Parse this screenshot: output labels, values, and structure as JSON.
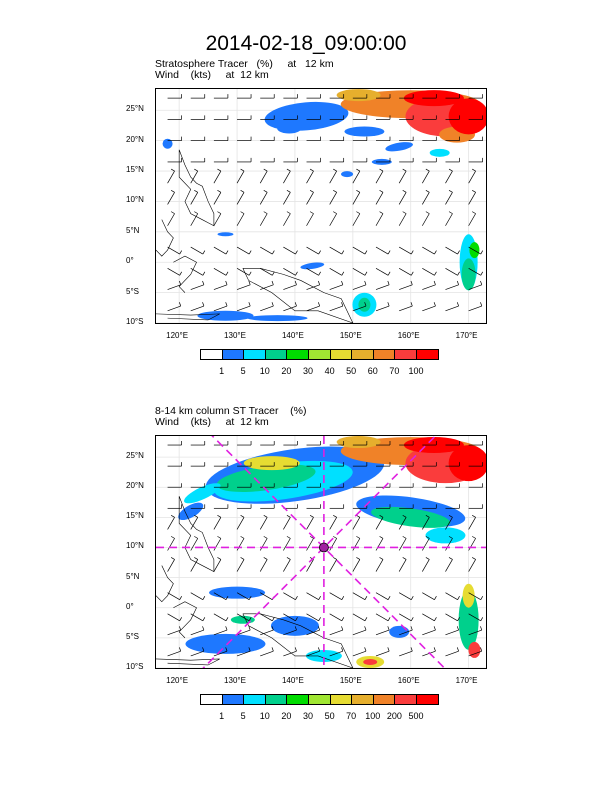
{
  "title": "2014-02-18_09:00:00",
  "panels": [
    {
      "label_line1": "Stratosphere Tracer   (%)     at   12 km",
      "label_line2": "Wind    (kts)     at  12 km",
      "lat_ticks": [
        "25°N",
        "20°N",
        "15°N",
        "10°N",
        "5°N",
        "0°",
        "5°S",
        "10°S"
      ],
      "lon_ticks": [
        "120°E",
        "130°E",
        "140°E",
        "150°E",
        "160°E",
        "170°E"
      ],
      "colorbar_labels": [
        "1",
        "5",
        "10",
        "20",
        "30",
        "40",
        "50",
        "60",
        "70",
        "100"
      ],
      "colorbar_colors": [
        "#ffffff",
        "#1e78ff",
        "#00e0ff",
        "#00d08c",
        "#00dc00",
        "#a0e632",
        "#e6dc32",
        "#e6af2d",
        "#f08228",
        "#fa3c3c",
        "#ff0000"
      ]
    },
    {
      "label_line1": "8-14 km column ST Tracer    (%)",
      "label_line2": "Wind    (kts)     at  12 km",
      "lat_ticks": [
        "25°N",
        "20°N",
        "15°N",
        "10°N",
        "5°N",
        "0°",
        "5°S",
        "10°S"
      ],
      "lon_ticks": [
        "120°E",
        "130°E",
        "140°E",
        "150°E",
        "160°E",
        "170°E"
      ],
      "colorbar_labels": [
        "1",
        "5",
        "10",
        "20",
        "30",
        "50",
        "70",
        "100",
        "200",
        "500"
      ],
      "colorbar_colors": [
        "#ffffff",
        "#1e78ff",
        "#00e0ff",
        "#00d08c",
        "#00dc00",
        "#a0e632",
        "#e6dc32",
        "#e6af2d",
        "#f08228",
        "#fa3c3c",
        "#ff0000"
      ]
    }
  ],
  "chart_data": [
    {
      "type": "heatmap",
      "title": "Stratosphere Tracer   (%)     at   12 km",
      "overlay": "Wind    (kts)     at  12 km",
      "xlim": [
        116,
        173
      ],
      "ylim": [
        -10,
        28.5
      ],
      "x_ticks": [
        120,
        130,
        140,
        150,
        160,
        170
      ],
      "y_ticks": [
        25,
        20,
        15,
        10,
        5,
        0,
        -5,
        -10
      ],
      "levels": [
        1,
        5,
        10,
        20,
        30,
        40,
        50,
        60,
        70,
        100
      ],
      "features": [
        {
          "region": "northeast high values",
          "lon": [
            147,
            173
          ],
          "lat": [
            19,
            28.5
          ],
          "value": "70-100"
        },
        {
          "region": "subtropical band",
          "lon": [
            133,
            158
          ],
          "lat": [
            18,
            25
          ],
          "value": "1-10"
        },
        {
          "region": "southeast",
          "lon": [
            166,
            173
          ],
          "lat": [
            -4,
            2
          ],
          "value": "10-40"
        },
        {
          "region": "south coast",
          "lon": [
            116,
            160
          ],
          "lat": [
            -10,
            -8
          ],
          "value": "1-20"
        }
      ]
    },
    {
      "type": "heatmap",
      "title": "8-14 km column ST Tracer    (%)",
      "overlay": "Wind    (kts)     at  12 km",
      "xlim": [
        116,
        173
      ],
      "ylim": [
        -10,
        28.5
      ],
      "x_ticks": [
        120,
        130,
        140,
        150,
        160,
        170
      ],
      "y_ticks": [
        25,
        20,
        15,
        10,
        5,
        0,
        -5,
        -10
      ],
      "levels": [
        1,
        5,
        10,
        20,
        30,
        50,
        70,
        100,
        200,
        500
      ],
      "features": [
        {
          "region": "northeast high values",
          "lon": [
            147,
            173
          ],
          "lat": [
            19,
            28.5
          ],
          "value": "200-500"
        },
        {
          "region": "subtropical arc",
          "lon": [
            116,
            173
          ],
          "lat": [
            13,
            26
          ],
          "value": "5-100"
        },
        {
          "region": "equatorial patches",
          "lon": [
            116,
            173
          ],
          "lat": [
            -10,
            5
          ],
          "value": "1-30"
        }
      ],
      "center_marker": {
        "lon": 145,
        "lat": 10
      }
    }
  ]
}
